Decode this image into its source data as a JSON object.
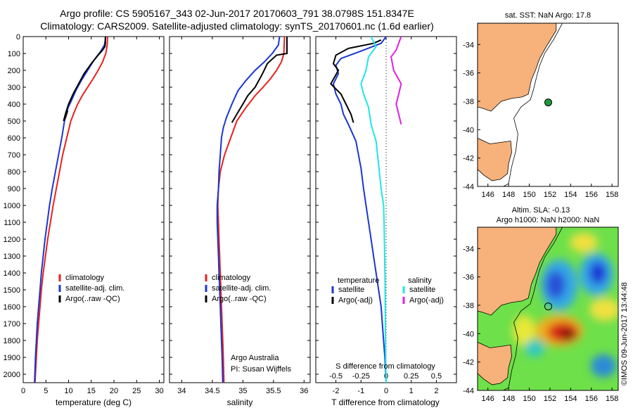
{
  "header": {
    "line1": "Argo profile: CS 5905167_343 02-Jun-2017 20170603_791 38.0798S 151.8347E",
    "line2": "Climatology: CARS2009. Satellite-adjusted climatology: synTS_20170601.nc (1.6d earlier)"
  },
  "colors": {
    "climatology": "#e8211c",
    "satellite": "#1b35d6",
    "argo": "#000000",
    "sal_satellite": "#1fe6e6",
    "sal_argo": "#e020e0",
    "land": "#f6b27a"
  },
  "chart_data": [
    {
      "type": "line",
      "xlabel": "temperature (deg C)",
      "ylabel": "",
      "xlim": [
        0,
        31
      ],
      "ylim": [
        0,
        2050
      ],
      "xticks": [
        "0",
        "5",
        "10",
        "15",
        "20",
        "25",
        "30"
      ],
      "yticks": [
        "0",
        "100",
        "200",
        "300",
        "400",
        "500",
        "600",
        "700",
        "800",
        "900",
        "1000",
        "1100",
        "1200",
        "1300",
        "1400",
        "1500",
        "1600",
        "1700",
        "1800",
        "1900",
        "2000"
      ],
      "legend": [
        "climatology",
        "satellite-adj. clim.",
        "Argo(..raw -QC)"
      ],
      "series": [
        {
          "name": "climatology",
          "color": "#e8211c",
          "points": [
            [
              18.6,
              0
            ],
            [
              18.5,
              50
            ],
            [
              18.2,
              100
            ],
            [
              17.5,
              150
            ],
            [
              16.5,
              200
            ],
            [
              15.4,
              250
            ],
            [
              14.2,
              300
            ],
            [
              13.0,
              350
            ],
            [
              12.0,
              400
            ],
            [
              11.2,
              450
            ],
            [
              10.5,
              500
            ],
            [
              9.6,
              600
            ],
            [
              8.7,
              700
            ],
            [
              8.0,
              800
            ],
            [
              7.3,
              900
            ],
            [
              6.6,
              1000
            ],
            [
              6.0,
              1100
            ],
            [
              5.4,
              1200
            ],
            [
              4.9,
              1300
            ],
            [
              4.4,
              1400
            ],
            [
              4.0,
              1500
            ],
            [
              3.7,
              1600
            ],
            [
              3.4,
              1700
            ],
            [
              3.1,
              1800
            ],
            [
              2.9,
              1900
            ],
            [
              2.6,
              2050
            ]
          ]
        },
        {
          "name": "satellite-adj. clim.",
          "color": "#1b35d6",
          "points": [
            [
              18.2,
              0
            ],
            [
              17.9,
              50
            ],
            [
              17.0,
              90
            ],
            [
              15.6,
              140
            ],
            [
              14.2,
              200
            ],
            [
              12.8,
              260
            ],
            [
              11.6,
              320
            ],
            [
              10.6,
              380
            ],
            [
              9.9,
              420
            ],
            [
              9.5,
              460
            ],
            [
              9.1,
              500
            ],
            [
              8.5,
              600
            ],
            [
              7.8,
              700
            ],
            [
              7.1,
              800
            ],
            [
              6.4,
              900
            ],
            [
              5.8,
              1000
            ],
            [
              5.3,
              1100
            ],
            [
              4.8,
              1200
            ],
            [
              4.4,
              1300
            ],
            [
              4.0,
              1400
            ],
            [
              3.7,
              1500
            ],
            [
              3.4,
              1600
            ],
            [
              3.1,
              1700
            ],
            [
              2.9,
              1800
            ],
            [
              2.7,
              1900
            ],
            [
              2.5,
              2050
            ]
          ]
        },
        {
          "name": "Argo(..raw -QC)",
          "color": "#000000",
          "points": [
            [
              18.1,
              0
            ],
            [
              18.1,
              40
            ],
            [
              18.0,
              60
            ],
            [
              17.5,
              80
            ],
            [
              16.5,
              110
            ],
            [
              15.0,
              160
            ],
            [
              13.4,
              220
            ],
            [
              12.2,
              280
            ],
            [
              11.0,
              340
            ],
            [
              10.0,
              400
            ],
            [
              9.4,
              450
            ],
            [
              8.9,
              500
            ],
            [
              9.3,
              480
            ],
            [
              9.8,
              440
            ]
          ]
        }
      ]
    },
    {
      "type": "line",
      "xlabel": "salinity",
      "ylabel": "",
      "xlim": [
        33.8,
        36.1
      ],
      "ylim": [
        0,
        2050
      ],
      "xticks": [
        "34",
        "34.5",
        "35",
        "35.5",
        "36"
      ],
      "legend": [
        "climatology",
        "satellite-adj. clim.",
        "Argo(..raw -QC)"
      ],
      "annotation": [
        "Argo Australia",
        "PI: Susan Wijffels"
      ],
      "series": [
        {
          "name": "climatology",
          "color": "#e8211c",
          "points": [
            [
              35.68,
              0
            ],
            [
              35.67,
              100
            ],
            [
              35.63,
              150
            ],
            [
              35.55,
              200
            ],
            [
              35.45,
              250
            ],
            [
              35.33,
              300
            ],
            [
              35.2,
              350
            ],
            [
              35.05,
              420
            ],
            [
              34.9,
              500
            ],
            [
              34.8,
              600
            ],
            [
              34.7,
              700
            ],
            [
              34.63,
              800
            ],
            [
              34.6,
              900
            ],
            [
              34.59,
              1000
            ],
            [
              34.6,
              1100
            ],
            [
              34.61,
              1200
            ],
            [
              34.62,
              1300
            ],
            [
              34.63,
              1400
            ],
            [
              34.64,
              1500
            ],
            [
              34.65,
              1600
            ],
            [
              34.66,
              1700
            ],
            [
              34.67,
              1800
            ],
            [
              34.68,
              1900
            ],
            [
              34.69,
              2050
            ]
          ]
        },
        {
          "name": "satellite-adj. clim.",
          "color": "#1b35d6",
          "points": [
            [
              35.6,
              0
            ],
            [
              35.58,
              50
            ],
            [
              35.48,
              100
            ],
            [
              35.35,
              150
            ],
            [
              35.2,
              200
            ],
            [
              35.05,
              260
            ],
            [
              34.92,
              320
            ],
            [
              34.82,
              400
            ],
            [
              34.73,
              480
            ],
            [
              34.68,
              540
            ],
            [
              34.65,
              600
            ],
            [
              34.63,
              700
            ],
            [
              34.61,
              800
            ],
            [
              34.6,
              900
            ],
            [
              34.58,
              1000
            ],
            [
              34.58,
              1100
            ],
            [
              34.59,
              1200
            ],
            [
              34.6,
              1300
            ],
            [
              34.61,
              1400
            ],
            [
              34.62,
              1500
            ],
            [
              34.63,
              1600
            ],
            [
              34.64,
              1700
            ],
            [
              34.65,
              1800
            ],
            [
              34.66,
              1900
            ],
            [
              34.67,
              2050
            ]
          ]
        },
        {
          "name": "Argo(..raw -QC)",
          "color": "#000000",
          "points": [
            [
              35.72,
              0
            ],
            [
              35.72,
              100
            ],
            [
              35.55,
              110
            ],
            [
              35.4,
              160
            ],
            [
              35.32,
              220
            ],
            [
              35.2,
              300
            ],
            [
              35.08,
              350
            ],
            [
              35.0,
              400
            ],
            [
              34.9,
              460
            ],
            [
              34.82,
              510
            ]
          ]
        }
      ]
    },
    {
      "type": "line",
      "xlabel": "T difference from climatology",
      "ylabel": "",
      "xlim": [
        -2.8,
        2.8
      ],
      "ylim": [
        0,
        2050
      ],
      "xticks": [
        "-2",
        "-1",
        "0",
        "1",
        "2"
      ],
      "top_xticks": [
        "-0.5",
        "-0.25",
        "0",
        "0.25",
        "0.5"
      ],
      "top_label": "S difference from climatology",
      "legend_temperature_title": "temperature",
      "legend_salinity_title": "salinity",
      "legend": [
        "satellite",
        "Argo(-adj)",
        "satellite",
        "Argo(-adj)"
      ],
      "series": [
        {
          "name": "satellite",
          "color": "#1b35d6",
          "points": [
            [
              0,
              0
            ],
            [
              -0.2,
              40
            ],
            [
              -0.9,
              80
            ],
            [
              -1.8,
              130
            ],
            [
              -2.0,
              170
            ],
            [
              -1.9,
              220
            ],
            [
              -2.1,
              280
            ],
            [
              -2.0,
              340
            ],
            [
              -1.8,
              400
            ],
            [
              -1.7,
              460
            ],
            [
              -1.5,
              520
            ],
            [
              -1.2,
              620
            ],
            [
              -1.1,
              700
            ],
            [
              -1.0,
              780
            ],
            [
              -0.9,
              900
            ],
            [
              -0.8,
              1000
            ],
            [
              -0.7,
              1100
            ],
            [
              -0.6,
              1200
            ],
            [
              -0.5,
              1300
            ],
            [
              -0.4,
              1400
            ],
            [
              -0.3,
              1500
            ],
            [
              -0.2,
              1600
            ],
            [
              -0.15,
              1700
            ],
            [
              -0.1,
              1800
            ],
            [
              -0.05,
              1900
            ],
            [
              0,
              2050
            ]
          ]
        },
        {
          "name": "Argo(-adj)",
          "color": "#000000",
          "points": [
            [
              -0.2,
              20
            ],
            [
              -0.5,
              40
            ],
            [
              -1.5,
              70
            ],
            [
              -2.0,
              110
            ],
            [
              -2.1,
              160
            ],
            [
              -1.9,
              200
            ],
            [
              -2.2,
              280
            ],
            [
              -1.8,
              340
            ],
            [
              -1.6,
              400
            ],
            [
              -1.4,
              460
            ],
            [
              -1.3,
              510
            ]
          ]
        },
        {
          "name": "satellite",
          "color": "#1fe6e6",
          "points": [
            [
              -0.6,
              0
            ],
            [
              -0.4,
              60
            ],
            [
              -0.7,
              120
            ],
            [
              -0.8,
              200
            ],
            [
              -1.0,
              280
            ],
            [
              -0.9,
              340
            ],
            [
              -0.7,
              420
            ],
            [
              -0.6,
              520
            ],
            [
              -0.4,
              620
            ],
            [
              -0.3,
              760
            ],
            [
              -0.2,
              900
            ],
            [
              -0.1,
              1000
            ],
            [
              -0.08,
              1100
            ],
            [
              -0.06,
              1300
            ],
            [
              -0.04,
              1500
            ],
            [
              -0.03,
              1700
            ],
            [
              -0.02,
              1900
            ],
            [
              0,
              2050
            ]
          ]
        },
        {
          "name": "Argo(-adj)",
          "color": "#e020e0",
          "points": [
            [
              0.6,
              0
            ],
            [
              0.4,
              80
            ],
            [
              0.2,
              120
            ],
            [
              0.3,
              200
            ],
            [
              0.6,
              280
            ],
            [
              0.5,
              340
            ],
            [
              0.4,
              400
            ],
            [
              0.5,
              460
            ],
            [
              0.6,
              520
            ]
          ]
        }
      ]
    },
    {
      "type": "map",
      "title": "sat. SST: NaN Argo: 17.8",
      "xticks": [
        "146",
        "148",
        "150",
        "152",
        "154",
        "156",
        "158"
      ],
      "yticks": [
        "-34",
        "-36",
        "-38",
        "-40",
        "-42",
        "-44"
      ],
      "marker": {
        "lon": 151.8347,
        "lat": -38.0798
      }
    },
    {
      "type": "heatmap",
      "title_line1": "Altim. SLA: -0.13",
      "title_line2": "Argo h1000: NaN h2000: NaN",
      "xticks": [
        "146",
        "148",
        "150",
        "152",
        "154",
        "156",
        "158"
      ],
      "yticks": [
        "-34",
        "-36",
        "-38",
        "-40",
        "-42",
        "-44"
      ],
      "marker": {
        "lon": 151.8347,
        "lat": -38.0798
      }
    }
  ],
  "credit": "©IMOS 09-Jun-2017 13:44:48"
}
